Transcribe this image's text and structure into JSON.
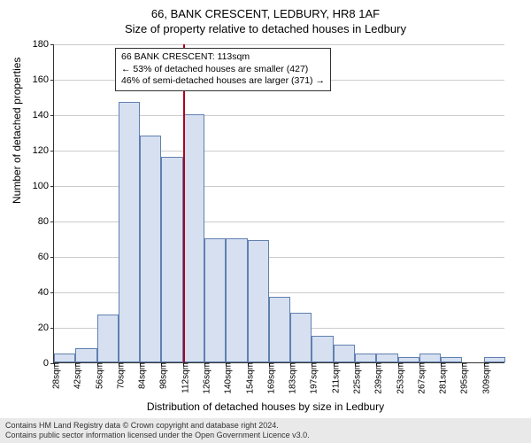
{
  "title": "66, BANK CRESCENT, LEDBURY, HR8 1AF",
  "subtitle": "Size of property relative to detached houses in Ledbury",
  "ylabel": "Number of detached properties",
  "xlabel": "Distribution of detached houses by size in Ledbury",
  "chart": {
    "type": "histogram",
    "ylim": [
      0,
      180
    ],
    "ytick_step": 20,
    "bar_fill": "#d6e0f0",
    "bar_stroke": "#6080b0",
    "grid_color": "#cccccc",
    "axis_color": "#333333",
    "ref_line_color": "#b00020",
    "ref_line_bin_index": 6,
    "bins": [
      {
        "label": "28sqm",
        "value": 5
      },
      {
        "label": "42sqm",
        "value": 8
      },
      {
        "label": "56sqm",
        "value": 27
      },
      {
        "label": "70sqm",
        "value": 147
      },
      {
        "label": "84sqm",
        "value": 128
      },
      {
        "label": "98sqm",
        "value": 116
      },
      {
        "label": "112sqm",
        "value": 140
      },
      {
        "label": "126sqm",
        "value": 70
      },
      {
        "label": "140sqm",
        "value": 70
      },
      {
        "label": "154sqm",
        "value": 69
      },
      {
        "label": "169sqm",
        "value": 37
      },
      {
        "label": "183sqm",
        "value": 28
      },
      {
        "label": "197sqm",
        "value": 15
      },
      {
        "label": "211sqm",
        "value": 10
      },
      {
        "label": "225sqm",
        "value": 5
      },
      {
        "label": "239sqm",
        "value": 5
      },
      {
        "label": "253sqm",
        "value": 3
      },
      {
        "label": "267sqm",
        "value": 5
      },
      {
        "label": "281sqm",
        "value": 3
      },
      {
        "label": "295sqm",
        "value": 0
      },
      {
        "label": "309sqm",
        "value": 3
      }
    ]
  },
  "annotation": {
    "line1": "66 BANK CRESCENT: 113sqm",
    "line2": "← 53% of detached houses are smaller (427)",
    "line3": "46% of semi-detached houses are larger (371) →"
  },
  "footer": {
    "line1": "Contains HM Land Registry data © Crown copyright and database right 2024.",
    "line2": "Contains public sector information licensed under the Open Government Licence v3.0."
  }
}
